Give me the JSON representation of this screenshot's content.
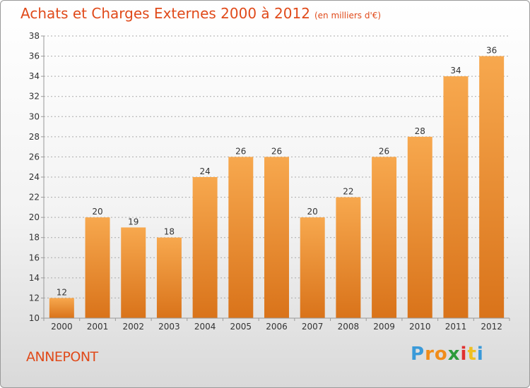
{
  "title": "Achats et Charges Externes 2000 à 2012",
  "subtitle": "(en milliers d'€)",
  "commune": "ANNEPONT",
  "logo": {
    "letters": [
      "P",
      "r",
      "o",
      "x",
      "i",
      "t",
      "i"
    ],
    "colors": [
      "#3a9ad9",
      "#f08c1a",
      "#f08c1a",
      "#2d9b3a",
      "#e03030",
      "#f0c020",
      "#3a9ad9"
    ]
  },
  "colors": {
    "bar_light": "#f7a84e",
    "bar_dark": "#d9731a",
    "grid": "#aaaaaa",
    "title": "#e04a1a",
    "text": "#333333"
  },
  "chart_data": {
    "type": "bar",
    "title": "Achats et Charges Externes 2000 à 2012",
    "subtitle": "(en milliers d'€)",
    "categories": [
      "2000",
      "2001",
      "2002",
      "2003",
      "2004",
      "2005",
      "2006",
      "2007",
      "2008",
      "2009",
      "2010",
      "2011",
      "2012"
    ],
    "values": [
      12,
      20,
      19,
      18,
      24,
      26,
      26,
      20,
      22,
      26,
      28,
      34,
      36
    ],
    "data_labels": [
      "12",
      "20",
      "19",
      "18",
      "24",
      "26",
      "26",
      "20",
      "22",
      "26",
      "28",
      "34",
      "36"
    ],
    "ylim": [
      10,
      38
    ],
    "yticks": [
      10,
      12,
      14,
      16,
      18,
      20,
      22,
      24,
      26,
      28,
      30,
      32,
      34,
      36,
      38
    ],
    "ytick_labels": [
      "10",
      "12",
      "14",
      "16",
      "18",
      "20",
      "22",
      "24",
      "26",
      "28",
      "30",
      "32",
      "34",
      "36",
      "38"
    ],
    "grid": true,
    "legend": "none",
    "xlabel": "",
    "ylabel": ""
  }
}
